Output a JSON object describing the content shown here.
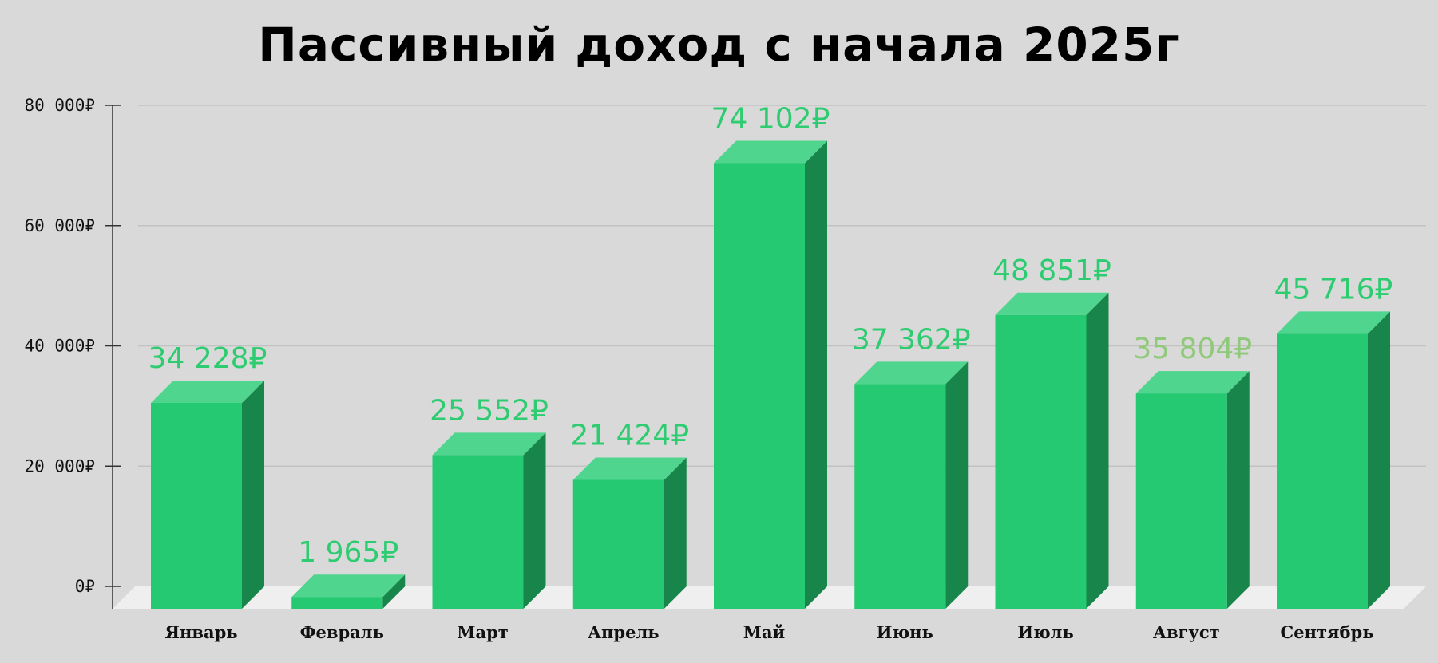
{
  "chart_data": {
    "type": "bar",
    "title": "Пассивный доход с начала 2025г",
    "xlabel": "",
    "ylabel": "",
    "ylim": [
      0,
      80000
    ],
    "yticks": [
      0,
      20000,
      40000,
      60000,
      80000
    ],
    "ytick_labels": [
      "0₽",
      "20 000₽",
      "40 000₽",
      "60 000₽",
      "80 000₽"
    ],
    "categories": [
      "Январь",
      "Февраль",
      "Март",
      "Апрель",
      "Май",
      "Июнь",
      "Июль",
      "Август",
      "Сентябрь"
    ],
    "values": [
      34228,
      1965,
      25552,
      21424,
      74102,
      37362,
      48851,
      35804,
      45716
    ],
    "data_labels": [
      "34 228₽",
      "1 965₽",
      "25 552₽",
      "21 424₽",
      "74 102₽",
      "37 362₽",
      "48 851₽",
      "35 804₽",
      "45 716₽"
    ],
    "grid": true,
    "legend": "none",
    "style": "3d-bars",
    "colors": {
      "bar_front": "#24c972",
      "bar_top": "#4fd58d",
      "bar_side": "#18854a",
      "label": "#2ecc71",
      "label_muted": "#8fc97a",
      "floor": "#efefef",
      "grid": "#c2c2c2",
      "axis": "#333333"
    },
    "label_colors": [
      "label",
      "label",
      "label",
      "label",
      "label",
      "label",
      "label",
      "label_muted",
      "label"
    ]
  }
}
